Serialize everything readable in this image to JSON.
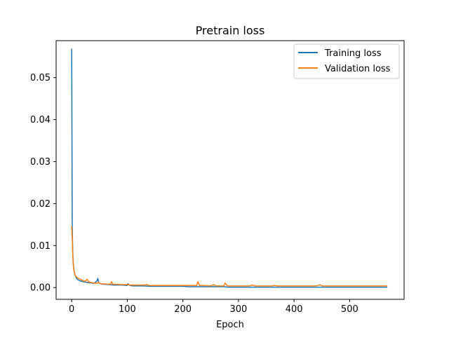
{
  "chart_data": {
    "type": "line",
    "title": "Pretrain loss",
    "xlabel": "Epoch",
    "ylabel": "",
    "xlim": [
      -28,
      598
    ],
    "ylim": [
      -0.0028,
      0.0588
    ],
    "xticks": [
      0,
      100,
      200,
      300,
      400,
      500
    ],
    "xtick_labels": [
      "0",
      "100",
      "200",
      "300",
      "400",
      "500"
    ],
    "yticks": [
      0.0,
      0.01,
      0.02,
      0.03,
      0.04,
      0.05
    ],
    "ytick_labels": [
      "0.00",
      "0.01",
      "0.02",
      "0.03",
      "0.04",
      "0.05"
    ],
    "grid": false,
    "legend_position": "top-right",
    "series": [
      {
        "name": "Training loss",
        "color": "#1f77b4",
        "x": [
          0,
          1,
          2,
          3,
          4,
          5,
          6,
          8,
          10,
          12,
          15,
          18,
          20,
          25,
          30,
          35,
          40,
          45,
          47,
          49,
          52,
          55,
          60,
          65,
          70,
          75,
          80,
          90,
          100,
          101,
          105,
          110,
          120,
          130,
          140,
          150,
          160,
          170,
          180,
          190,
          200,
          210,
          220,
          225,
          228,
          230,
          240,
          250,
          255,
          260,
          270,
          275,
          280,
          290,
          300,
          310,
          320,
          330,
          340,
          350,
          360,
          370,
          380,
          390,
          400,
          410,
          420,
          430,
          440,
          445,
          450,
          460,
          470,
          480,
          490,
          500,
          510,
          520,
          530,
          540,
          550,
          560,
          567
        ],
        "y": [
          0.0568,
          0.0145,
          0.008,
          0.0055,
          0.0042,
          0.0035,
          0.003,
          0.0024,
          0.002,
          0.0018,
          0.0016,
          0.0015,
          0.0014,
          0.0013,
          0.0012,
          0.0011,
          0.001,
          0.0015,
          0.0022,
          0.0011,
          0.0009,
          0.0008,
          0.0008,
          0.0007,
          0.0007,
          0.0006,
          0.0006,
          0.0006,
          0.0005,
          0.0009,
          0.0005,
          0.0004,
          0.0004,
          0.0004,
          0.0003,
          0.0003,
          0.0003,
          0.0003,
          0.0003,
          0.0003,
          0.0003,
          0.0002,
          0.0002,
          0.0002,
          0.0002,
          0.0002,
          0.0002,
          0.0002,
          0.0002,
          0.0002,
          0.0002,
          0.0002,
          0.0001,
          0.0001,
          0.0001,
          0.0001,
          0.0001,
          0.0001,
          0.0001,
          0.0001,
          0.0001,
          0.0001,
          0.0001,
          0.0001,
          0.0001,
          0.0001,
          0.0001,
          0.0001,
          0.0001,
          0.0001,
          0.0001,
          0.0001,
          0.0001,
          0.0001,
          0.0001,
          0.0001,
          0.0001,
          0.0001,
          0.0001,
          0.0001,
          0.0001,
          0.0001,
          0.0001
        ]
      },
      {
        "name": "Validation loss",
        "color": "#ff7f0e",
        "x": [
          0,
          1,
          2,
          3,
          4,
          5,
          6,
          8,
          10,
          12,
          15,
          18,
          20,
          23,
          25,
          28,
          30,
          35,
          40,
          45,
          48,
          50,
          55,
          60,
          65,
          70,
          72,
          74,
          80,
          90,
          100,
          105,
          110,
          120,
          130,
          135,
          140,
          150,
          160,
          170,
          180,
          190,
          200,
          210,
          220,
          225,
          227,
          230,
          240,
          250,
          255,
          260,
          270,
          274,
          276,
          280,
          290,
          300,
          310,
          320,
          325,
          330,
          340,
          350,
          360,
          365,
          370,
          380,
          390,
          400,
          410,
          420,
          430,
          440,
          447,
          450,
          460,
          470,
          480,
          490,
          500,
          510,
          520,
          530,
          540,
          550,
          560,
          567
        ],
        "y": [
          0.0145,
          0.0118,
          0.0075,
          0.0052,
          0.004,
          0.0034,
          0.003,
          0.0026,
          0.0024,
          0.0022,
          0.002,
          0.0018,
          0.0017,
          0.0015,
          0.0016,
          0.002,
          0.0014,
          0.0012,
          0.0011,
          0.001,
          0.0013,
          0.001,
          0.0009,
          0.0009,
          0.0008,
          0.0008,
          0.0014,
          0.0008,
          0.0008,
          0.0007,
          0.0007,
          0.0006,
          0.0006,
          0.0006,
          0.0006,
          0.0007,
          0.0005,
          0.0005,
          0.0005,
          0.0005,
          0.0005,
          0.0005,
          0.0005,
          0.0005,
          0.0005,
          0.0005,
          0.0014,
          0.0005,
          0.0005,
          0.0004,
          0.0007,
          0.0004,
          0.0004,
          0.0004,
          0.0011,
          0.0004,
          0.0004,
          0.0004,
          0.0004,
          0.0004,
          0.0006,
          0.0004,
          0.0004,
          0.0004,
          0.0004,
          0.0005,
          0.0004,
          0.0004,
          0.0004,
          0.0004,
          0.0004,
          0.0004,
          0.0004,
          0.0004,
          0.0007,
          0.0004,
          0.0004,
          0.0004,
          0.0004,
          0.0004,
          0.0004,
          0.0004,
          0.0004,
          0.0004,
          0.0004,
          0.0004,
          0.0004,
          0.0004
        ]
      }
    ]
  }
}
